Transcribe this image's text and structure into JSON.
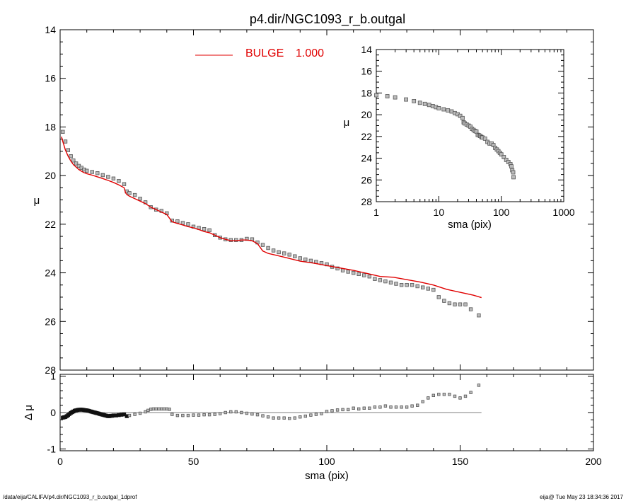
{
  "title": "p4.dir/NGC1093_r_b.outgal",
  "footer_left": "/data/eija/CALIFA/p4.dir/NGC1093_r_b.outgal_1dprof",
  "footer_right": "eija@  Tue May 23 18:34:36 2017",
  "colors": {
    "model": "#e00000",
    "points": "#555555",
    "axis": "#000000",
    "residual_dense": "#111111"
  },
  "chart_data": [
    {
      "type": "scatter",
      "panel": "main",
      "xlabel": "",
      "ylabel": "μ",
      "xlim": [
        0,
        200
      ],
      "ylim": [
        28,
        14
      ],
      "x_ticks": [
        0,
        50,
        100,
        150,
        200
      ],
      "y_ticks": [
        14,
        16,
        18,
        20,
        22,
        24,
        26,
        28
      ],
      "legend": {
        "label": "BULGE",
        "value": "1.000",
        "placement": "top-center"
      },
      "series": [
        {
          "name": "BULGE",
          "kind": "line",
          "color": "#e00000",
          "x": [
            0.5,
            1,
            2,
            3,
            4,
            5,
            6,
            7,
            8,
            9,
            10,
            12,
            14,
            16,
            18,
            20,
            22,
            24,
            24.5,
            25,
            26,
            28,
            30,
            32,
            34,
            36,
            38,
            40,
            41,
            42,
            44,
            46,
            48,
            50,
            52,
            54,
            56,
            58,
            60,
            62,
            64,
            66,
            68,
            70,
            72,
            74,
            76,
            78,
            80,
            85,
            90,
            95,
            100,
            105,
            110,
            115,
            120,
            125,
            130,
            135,
            140,
            145,
            150,
            155,
            158
          ],
          "y": [
            18.4,
            18.6,
            18.95,
            19.2,
            19.4,
            19.55,
            19.65,
            19.75,
            19.82,
            19.88,
            19.92,
            19.98,
            20.05,
            20.12,
            20.2,
            20.28,
            20.38,
            20.5,
            20.7,
            20.78,
            20.85,
            20.95,
            21.05,
            21.15,
            21.3,
            21.4,
            21.5,
            21.6,
            21.75,
            21.9,
            21.97,
            22.03,
            22.1,
            22.15,
            22.22,
            22.3,
            22.35,
            22.45,
            22.55,
            22.62,
            22.68,
            22.68,
            22.65,
            22.65,
            22.68,
            22.8,
            23.1,
            23.2,
            23.25,
            23.38,
            23.52,
            23.6,
            23.7,
            23.8,
            23.9,
            24.02,
            24.15,
            24.18,
            24.28,
            24.38,
            24.5,
            24.68,
            24.8,
            24.92,
            25.02
          ]
        },
        {
          "name": "",
          "kind": "points",
          "color": "#555555",
          "x": [
            1,
            2,
            3,
            4,
            5,
            6,
            7,
            8,
            9,
            10,
            12,
            14,
            16,
            18,
            20,
            22,
            24,
            25,
            26,
            28,
            30,
            32,
            34,
            36,
            38,
            40,
            42,
            44,
            46,
            48,
            50,
            52,
            54,
            56,
            58,
            60,
            62,
            64,
            66,
            68,
            70,
            72,
            74,
            76,
            78,
            80,
            82,
            84,
            86,
            88,
            90,
            92,
            94,
            96,
            98,
            100,
            102,
            104,
            106,
            108,
            110,
            112,
            114,
            116,
            118,
            120,
            122,
            124,
            126,
            128,
            130,
            132,
            134,
            136,
            138,
            140,
            142,
            144,
            146,
            148,
            150,
            152,
            154,
            157
          ],
          "y": [
            18.2,
            18.6,
            18.95,
            19.2,
            19.38,
            19.5,
            19.6,
            19.68,
            19.75,
            19.8,
            19.85,
            19.9,
            19.98,
            20.05,
            20.12,
            20.22,
            20.35,
            20.65,
            20.72,
            20.8,
            20.95,
            21.1,
            21.3,
            21.4,
            21.45,
            21.55,
            21.85,
            21.88,
            21.95,
            22.0,
            22.1,
            22.15,
            22.2,
            22.25,
            22.45,
            22.55,
            22.62,
            22.65,
            22.65,
            22.65,
            22.6,
            22.62,
            22.75,
            22.85,
            22.98,
            23.08,
            23.15,
            23.2,
            23.25,
            23.32,
            23.4,
            23.45,
            23.5,
            23.55,
            23.6,
            23.65,
            23.75,
            23.82,
            23.9,
            23.95,
            24.0,
            24.05,
            24.1,
            24.15,
            24.25,
            24.3,
            24.35,
            24.4,
            24.45,
            24.5,
            24.5,
            24.5,
            24.55,
            24.6,
            24.65,
            24.7,
            25.0,
            25.15,
            25.25,
            25.3,
            25.3,
            25.3,
            25.5,
            25.75
          ]
        }
      ]
    },
    {
      "type": "scatter",
      "panel": "inset",
      "xlabel": "sma (pix)",
      "ylabel": "μ",
      "xscale": "log",
      "xlim": [
        1,
        1000
      ],
      "ylim": [
        28,
        14
      ],
      "x_ticks": [
        1,
        10,
        100,
        1000
      ],
      "y_ticks": [
        14,
        16,
        18,
        20,
        22,
        24,
        26,
        28
      ],
      "series": [
        {
          "name": "",
          "kind": "points",
          "color": "#555555",
          "x": [
            1,
            1.5,
            2,
            3,
            4,
            5,
            6,
            7,
            8,
            9,
            10,
            12,
            14,
            16,
            18,
            20,
            22,
            24,
            25,
            26,
            28,
            30,
            32,
            34,
            36,
            38,
            40,
            42,
            44,
            46,
            48,
            50,
            55,
            60,
            65,
            70,
            75,
            80,
            85,
            90,
            95,
            100,
            110,
            120,
            130,
            140,
            145,
            150,
            155,
            157
          ],
          "y": [
            18.2,
            18.3,
            18.4,
            18.6,
            18.75,
            18.9,
            19.0,
            19.1,
            19.2,
            19.3,
            19.4,
            19.5,
            19.6,
            19.7,
            19.85,
            19.95,
            20.1,
            20.3,
            20.7,
            20.8,
            20.9,
            21.0,
            21.1,
            21.3,
            21.4,
            21.5,
            21.55,
            21.85,
            21.9,
            21.95,
            22.05,
            22.1,
            22.2,
            22.5,
            22.65,
            22.65,
            22.8,
            23.05,
            23.2,
            23.35,
            23.5,
            23.65,
            23.9,
            24.15,
            24.35,
            24.55,
            24.75,
            25.1,
            25.3,
            25.75
          ]
        }
      ]
    },
    {
      "type": "scatter",
      "panel": "residual",
      "xlabel": "sma (pix)",
      "ylabel": "Δ μ",
      "xlim": [
        0,
        200
      ],
      "ylim": [
        -1.05,
        1.05
      ],
      "x_ticks": [
        0,
        50,
        100,
        150,
        200
      ],
      "y_ticks": [
        -1,
        0,
        1
      ],
      "series": [
        {
          "name": "",
          "kind": "points-dense",
          "color": "#111111",
          "x": [
            1,
            1.5,
            2,
            2.5,
            3,
            3.5,
            4,
            4.5,
            5,
            5.5,
            6,
            6.5,
            7,
            7.5,
            8,
            8.5,
            9,
            9.5,
            10,
            10.5,
            11,
            11.5,
            12,
            12.5,
            13,
            13.5,
            14,
            14.5,
            15,
            15.5,
            16,
            16.5,
            17,
            17.5,
            18,
            18.5,
            19,
            19.5,
            20,
            21,
            22,
            23,
            24,
            25
          ],
          "y": [
            -0.14,
            -0.13,
            -0.12,
            -0.1,
            -0.07,
            -0.04,
            -0.01,
            0.01,
            0.03,
            0.05,
            0.06,
            0.07,
            0.075,
            0.08,
            0.08,
            0.075,
            0.07,
            0.065,
            0.06,
            0.05,
            0.04,
            0.03,
            0.02,
            0.01,
            0.0,
            -0.01,
            -0.02,
            -0.03,
            -0.04,
            -0.05,
            -0.06,
            -0.07,
            -0.08,
            -0.09,
            -0.1,
            -0.1,
            -0.09,
            -0.09,
            -0.08,
            -0.08,
            -0.07,
            -0.06,
            -0.05,
            -0.1
          ]
        },
        {
          "name": "",
          "kind": "points",
          "color": "#555555",
          "x": [
            26,
            28,
            30,
            32,
            33,
            34,
            35,
            36,
            37,
            38,
            39,
            40,
            41,
            42,
            44,
            46,
            48,
            50,
            52,
            54,
            56,
            58,
            60,
            62,
            64,
            66,
            68,
            70,
            72,
            74,
            76,
            78,
            80,
            82,
            84,
            86,
            88,
            90,
            92,
            94,
            96,
            98,
            100,
            102,
            104,
            106,
            108,
            110,
            112,
            114,
            116,
            118,
            120,
            122,
            124,
            126,
            128,
            130,
            132,
            134,
            136,
            138,
            140,
            142,
            144,
            146,
            148,
            150,
            152,
            154,
            157
          ],
          "y": [
            -0.08,
            -0.05,
            -0.02,
            0.02,
            0.06,
            0.09,
            0.1,
            0.1,
            0.1,
            0.1,
            0.1,
            0.1,
            0.09,
            -0.05,
            -0.08,
            -0.08,
            -0.08,
            -0.07,
            -0.07,
            -0.06,
            -0.06,
            -0.05,
            -0.03,
            0.0,
            0.02,
            0.02,
            0.0,
            -0.02,
            -0.04,
            -0.06,
            -0.09,
            -0.12,
            -0.15,
            -0.15,
            -0.15,
            -0.16,
            -0.15,
            -0.12,
            -0.1,
            -0.07,
            -0.05,
            -0.03,
            0.03,
            0.05,
            0.07,
            0.08,
            0.08,
            0.12,
            0.1,
            0.12,
            0.12,
            0.15,
            0.15,
            0.18,
            0.15,
            0.15,
            0.15,
            0.15,
            0.18,
            0.2,
            0.3,
            0.4,
            0.47,
            0.5,
            0.5,
            0.5,
            0.45,
            0.4,
            0.45,
            0.55,
            0.75
          ]
        },
        {
          "name": "",
          "kind": "zero-line",
          "color": "#555555",
          "x": [
            0,
            158
          ],
          "y": [
            0,
            0
          ]
        }
      ]
    }
  ]
}
